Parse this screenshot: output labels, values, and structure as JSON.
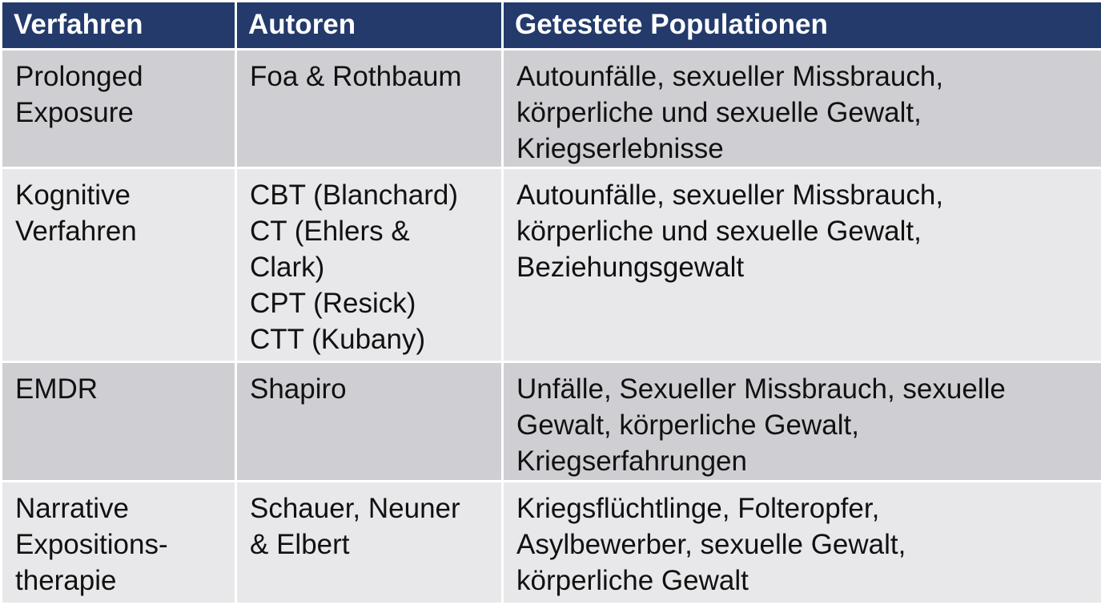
{
  "table": {
    "headers": [
      "Verfahren",
      "Autoren",
      "Getestete Populationen"
    ],
    "rows": [
      {
        "verfahren": [
          "Prolonged",
          "Exposure"
        ],
        "autoren": [
          "Foa & Rothbaum"
        ],
        "populationen": [
          "Autounfälle, sexueller Missbrauch,",
          "körperliche und sexuelle Gewalt,",
          "Kriegserlebnisse"
        ]
      },
      {
        "verfahren": [
          "Kognitive",
          "Verfahren"
        ],
        "autoren": [
          "CBT (Blanchard)",
          "CT (Ehlers &",
          "Clark)",
          "CPT (Resick)",
          "CTT (Kubany)"
        ],
        "populationen": [
          "Autounfälle, sexueller Missbrauch,",
          "körperliche und sexuelle Gewalt,",
          "Beziehungsgewalt"
        ]
      },
      {
        "verfahren": [
          "EMDR"
        ],
        "autoren": [
          "Shapiro"
        ],
        "populationen": [
          "Unfälle, Sexueller Missbrauch, sexuelle",
          "Gewalt, körperliche Gewalt,",
          "Kriegserfahrungen"
        ]
      },
      {
        "verfahren": [
          "Narrative",
          "Expositions-",
          "therapie"
        ],
        "autoren": [
          "Schauer, Neuner",
          "& Elbert"
        ],
        "populationen": [
          "Kriegsflüchtlinge, Folteropfer,",
          "Asylbewerber, sexuelle Gewalt,",
          "körperliche Gewalt"
        ]
      }
    ]
  },
  "colors": {
    "header_bg": "#233a6b",
    "row_dark": "#cfcfd3",
    "row_light": "#e8e8ea"
  }
}
